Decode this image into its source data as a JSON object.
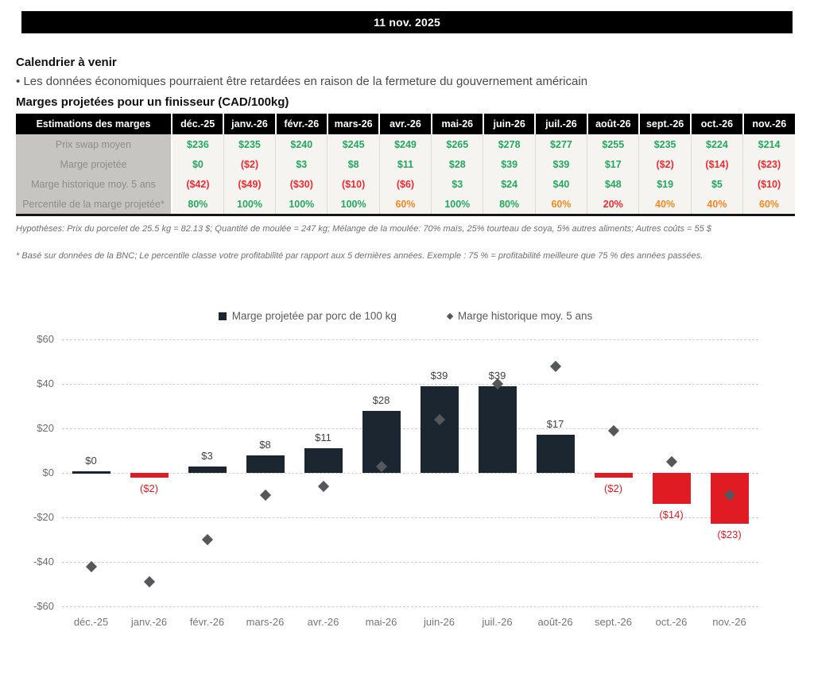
{
  "header": {
    "date": "11 nov. 2025"
  },
  "calendar": {
    "title": "Calendrier à venir",
    "bullet_marker": "•",
    "bullet_text": "Les données économiques pourraient être retardées en raison de la fermeture du gouvernement américain"
  },
  "margins_section": {
    "title": "Marges projetées pour un finisseur (CAD/100kg)"
  },
  "table": {
    "header": [
      "Estimations des marges",
      "déc.-25",
      "janv.-26",
      "févr.-26",
      "mars-26",
      "avr.-26",
      "mai-26",
      "juin-26",
      "juil.-26",
      "août-26",
      "sept.-26",
      "oct.-26",
      "nov.-26"
    ],
    "rows": [
      {
        "label": "Prix swap moyen",
        "values": [
          "$236",
          "$235",
          "$240",
          "$245",
          "$249",
          "$265",
          "$278",
          "$277",
          "$255",
          "$235",
          "$224",
          "$214"
        ],
        "colors": [
          "green",
          "green",
          "green",
          "green",
          "green",
          "green",
          "green",
          "green",
          "green",
          "green",
          "green",
          "green"
        ]
      },
      {
        "label": "Marge projetée",
        "values": [
          "$0",
          "($2)",
          "$3",
          "$8",
          "$11",
          "$28",
          "$39",
          "$39",
          "$17",
          "($2)",
          "($14)",
          "($23)"
        ],
        "colors": [
          "green",
          "red",
          "green",
          "green",
          "green",
          "green",
          "green",
          "green",
          "green",
          "red",
          "red",
          "red"
        ]
      },
      {
        "label": "Marge historique moy. 5 ans",
        "values": [
          "($42)",
          "($49)",
          "($30)",
          "($10)",
          "($6)",
          "$3",
          "$24",
          "$40",
          "$48",
          "$19",
          "$5",
          "($10)"
        ],
        "colors": [
          "red",
          "red",
          "red",
          "red",
          "red",
          "green",
          "green",
          "green",
          "green",
          "green",
          "green",
          "red"
        ]
      },
      {
        "label": "Percentile de la marge projetée*",
        "values": [
          "80%",
          "100%",
          "100%",
          "100%",
          "60%",
          "100%",
          "80%",
          "60%",
          "20%",
          "40%",
          "40%",
          "60%"
        ],
        "colors": [
          "green",
          "green",
          "green",
          "green",
          "orange",
          "green",
          "green",
          "orange",
          "red",
          "orange",
          "orange",
          "orange"
        ]
      }
    ]
  },
  "footnotes": [
    "Hypothèses: Prix du porcelet de 25.5 kg = 82.13 $; Quantité de moulée = 247 kg; Mélange de la moulée: 70% maïs, 25% tourteau de soya, 5% autres aliments; Autres coûts = 55 $",
    "* Basé sur données de la BNC; Le percentile classe votre profitabilité par rapport aux 5 dernières années. Exemple : 75 % = profitabilité meilleure que 75 % des années passées."
  ],
  "chart_data": {
    "type": "bar",
    "categories": [
      "déc.-25",
      "janv.-26",
      "févr.-26",
      "mars-26",
      "avr.-26",
      "mai-26",
      "juin-26",
      "juil.-26",
      "août-26",
      "sept.-26",
      "oct.-26",
      "nov.-26"
    ],
    "series": [
      {
        "name": "Marge projetée par porc de 100 kg",
        "type": "bar",
        "values": [
          0,
          -2,
          3,
          8,
          11,
          28,
          39,
          39,
          17,
          -2,
          -14,
          -23
        ],
        "labels": [
          "$0",
          "($2)",
          "$3",
          "$8",
          "$11",
          "$28",
          "$39",
          "$39",
          "$17",
          "($2)",
          "($14)",
          "($23)"
        ],
        "positive_color": "#1b2631",
        "negative_color": "#e01b24"
      },
      {
        "name": "Marge historique moy. 5 ans",
        "type": "scatter",
        "marker": "diamond",
        "values": [
          -42,
          -49,
          -30,
          -10,
          -6,
          3,
          24,
          40,
          48,
          19,
          5,
          -10
        ],
        "color": "#54575b"
      }
    ],
    "title": "",
    "xlabel": "",
    "ylabel": "",
    "ylim": [
      -60,
      60
    ],
    "ytick_values": [
      60,
      40,
      20,
      0,
      -20,
      -40,
      -60
    ],
    "ytick_labels": [
      "$60",
      "$40",
      "$20",
      "$0",
      "-$20",
      "-$40",
      "-$60"
    ],
    "grid": "horizontal-dashed",
    "legend_position": "top"
  }
}
